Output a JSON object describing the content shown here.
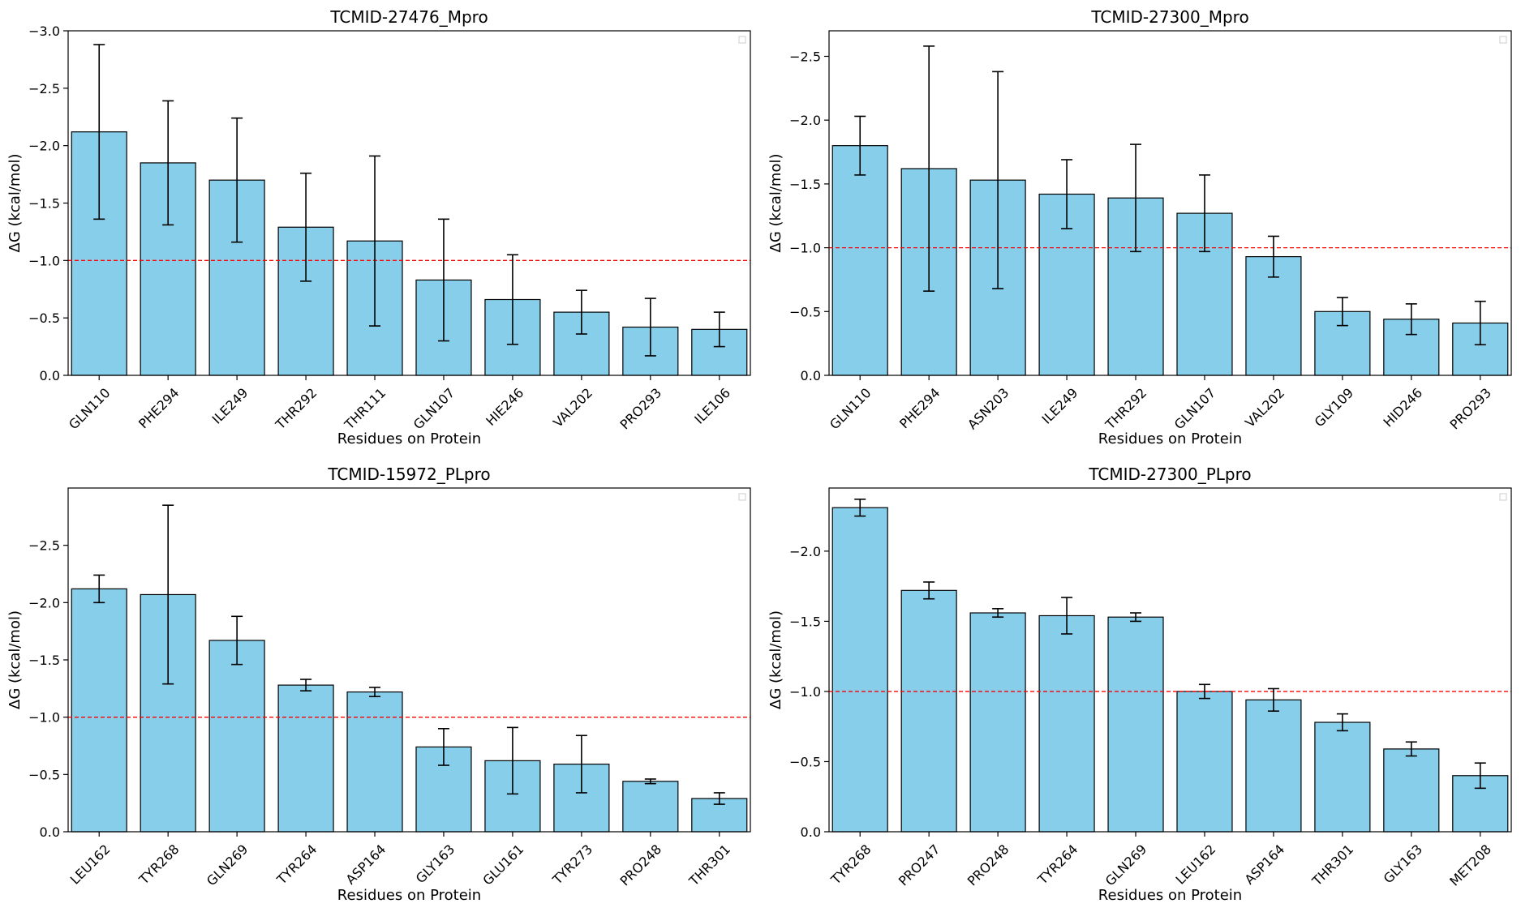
{
  "chart_data": [
    {
      "type": "bar",
      "title": "TCMID-27476_Mpro",
      "xlabel": "Residues on Protein",
      "ylabel": "ΔG (kcal/mol)",
      "categories": [
        "GLN110",
        "PHE294",
        "ILE249",
        "THR292",
        "THR111",
        "GLN107",
        "HIE246",
        "VAL202",
        "PRO293",
        "ILE106"
      ],
      "values": [
        -2.12,
        -1.85,
        -1.7,
        -1.29,
        -1.17,
        -0.83,
        -0.66,
        -0.55,
        -0.42,
        -0.4
      ],
      "errors": [
        0.76,
        0.54,
        0.54,
        0.47,
        0.74,
        0.53,
        0.39,
        0.19,
        0.25,
        0.15
      ],
      "ylim": [
        0,
        -3.0
      ],
      "yticks": [
        0,
        -0.5,
        -1.0,
        -1.5,
        -2.0,
        -2.5,
        -3.0
      ],
      "ytick_labels": [
        "0.0",
        "−0.5",
        "−1.0",
        "−1.5",
        "−2.0",
        "−2.5",
        "−3.0"
      ],
      "threshold": -1.0,
      "bar_color": "#87ceeb",
      "threshold_color": "#ff0000",
      "legend": "top-right"
    },
    {
      "type": "bar",
      "title": "TCMID-27300_Mpro",
      "xlabel": "Residues on Protein",
      "ylabel": "ΔG (kcal/mol)",
      "categories": [
        "GLN110",
        "PHE294",
        "ASN203",
        "ILE249",
        "THR292",
        "GLN107",
        "VAL202",
        "GLY109",
        "HID246",
        "PRO293"
      ],
      "values": [
        -1.8,
        -1.62,
        -1.53,
        -1.42,
        -1.39,
        -1.27,
        -0.93,
        -0.5,
        -0.44,
        -0.41
      ],
      "errors": [
        0.23,
        0.96,
        0.85,
        0.27,
        0.42,
        0.3,
        0.16,
        0.11,
        0.12,
        0.17
      ],
      "ylim": [
        0,
        -2.7
      ],
      "yticks": [
        0,
        -0.5,
        -1.0,
        -1.5,
        -2.0,
        -2.5
      ],
      "ytick_labels": [
        "0.0",
        "−0.5",
        "−1.0",
        "−1.5",
        "−2.0",
        "−2.5"
      ],
      "threshold": -1.0,
      "bar_color": "#87ceeb",
      "threshold_color": "#ff0000",
      "legend": "top-right"
    },
    {
      "type": "bar",
      "title": "TCMID-15972_PLpro",
      "xlabel": "Residues on Protein",
      "ylabel": "ΔG (kcal/mol)",
      "categories": [
        "LEU162",
        "TYR268",
        "GLN269",
        "TYR264",
        "ASP164",
        "GLY163",
        "GLU161",
        "TYR273",
        "PRO248",
        "THR301"
      ],
      "values": [
        -2.12,
        -2.07,
        -1.67,
        -1.28,
        -1.22,
        -0.74,
        -0.62,
        -0.59,
        -0.44,
        -0.29
      ],
      "errors": [
        0.12,
        0.78,
        0.21,
        0.05,
        0.04,
        0.16,
        0.29,
        0.25,
        0.02,
        0.05
      ],
      "ylim": [
        0,
        -3.0
      ],
      "yticks": [
        0,
        -0.5,
        -1.0,
        -1.5,
        -2.0,
        -2.5
      ],
      "ytick_labels": [
        "0.0",
        "−0.5",
        "−1.0",
        "−1.5",
        "−2.0",
        "−2.5"
      ],
      "threshold": -1.0,
      "bar_color": "#87ceeb",
      "threshold_color": "#ff0000",
      "legend": "top-right"
    },
    {
      "type": "bar",
      "title": "TCMID-27300_PLpro",
      "xlabel": "Residues on Protein",
      "ylabel": "ΔG (kcal/mol)",
      "categories": [
        "TYR268",
        "PRO247",
        "PRO248",
        "TYR264",
        "GLN269",
        "LEU162",
        "ASP164",
        "THR301",
        "GLY163",
        "MET208"
      ],
      "values": [
        -2.31,
        -1.72,
        -1.56,
        -1.54,
        -1.53,
        -1.0,
        -0.94,
        -0.78,
        -0.59,
        -0.4
      ],
      "errors": [
        0.06,
        0.06,
        0.03,
        0.13,
        0.03,
        0.05,
        0.08,
        0.06,
        0.05,
        0.09
      ],
      "ylim": [
        0,
        -2.45
      ],
      "yticks": [
        0,
        -0.5,
        -1.0,
        -1.5,
        -2.0
      ],
      "ytick_labels": [
        "0.0",
        "−0.5",
        "−1.0",
        "−1.5",
        "−2.0"
      ],
      "threshold": -1.0,
      "bar_color": "#87ceeb",
      "threshold_color": "#ff0000",
      "legend": "top-right"
    }
  ]
}
